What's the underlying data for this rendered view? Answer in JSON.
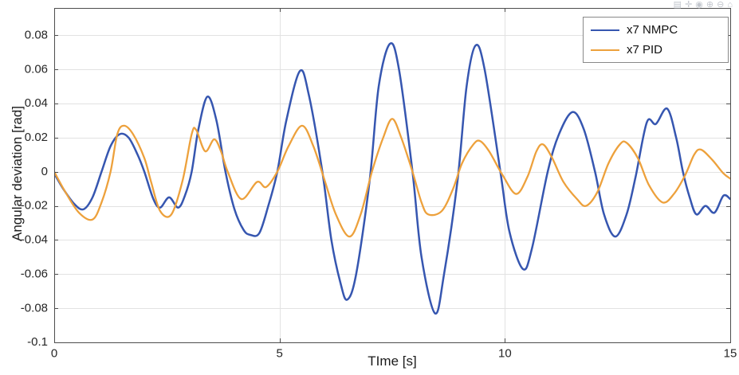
{
  "toolbar": {
    "icons": [
      {
        "name": "brush",
        "glyph": "▤"
      },
      {
        "name": "pan",
        "glyph": "✛"
      },
      {
        "name": "datatip",
        "glyph": "◉"
      },
      {
        "name": "zoom-in",
        "glyph": "⊕"
      },
      {
        "name": "zoom-out",
        "glyph": "⊖"
      },
      {
        "name": "home",
        "glyph": "⌂"
      }
    ]
  },
  "chart_data": {
    "type": "line",
    "title": "",
    "xlabel": "TIme [s]",
    "ylabel": "Angular deviation [rad]",
    "xlim": [
      0,
      15
    ],
    "ylim": [
      -0.1,
      0.096
    ],
    "xticks": [
      0,
      5,
      10,
      15
    ],
    "yticks": [
      -0.1,
      -0.08,
      -0.06,
      -0.04,
      -0.02,
      0,
      0.02,
      0.04,
      0.06,
      0.08
    ],
    "grid": true,
    "legend_position": "top-right",
    "axis_color": "#4d4d4d",
    "grid_color": "#e2e2e2",
    "tick_label_color": "#262626",
    "series": [
      {
        "name": "x7 NMPC",
        "color": "#3656b0",
        "width": 2.5,
        "points": [
          [
            0,
            -0.001
          ],
          [
            0.2,
            -0.01
          ],
          [
            0.45,
            -0.019
          ],
          [
            0.65,
            -0.022
          ],
          [
            0.85,
            -0.015
          ],
          [
            1.05,
            0.0
          ],
          [
            1.25,
            0.015
          ],
          [
            1.45,
            0.022
          ],
          [
            1.65,
            0.02
          ],
          [
            1.85,
            0.01
          ],
          [
            2.0,
            0.0
          ],
          [
            2.2,
            -0.016
          ],
          [
            2.35,
            -0.021
          ],
          [
            2.55,
            -0.015
          ],
          [
            2.75,
            -0.021
          ],
          [
            2.9,
            -0.014
          ],
          [
            3.05,
            0.0
          ],
          [
            3.2,
            0.025
          ],
          [
            3.4,
            0.044
          ],
          [
            3.6,
            0.03
          ],
          [
            3.8,
            0.0
          ],
          [
            4.0,
            -0.022
          ],
          [
            4.2,
            -0.034
          ],
          [
            4.35,
            -0.037
          ],
          [
            4.55,
            -0.036
          ],
          [
            4.75,
            -0.02
          ],
          [
            4.95,
            0.0
          ],
          [
            5.15,
            0.03
          ],
          [
            5.45,
            0.059
          ],
          [
            5.65,
            0.045
          ],
          [
            5.95,
            0.0
          ],
          [
            6.15,
            -0.04
          ],
          [
            6.35,
            -0.065
          ],
          [
            6.5,
            -0.075
          ],
          [
            6.7,
            -0.06
          ],
          [
            7.0,
            -0.005
          ],
          [
            7.2,
            0.05
          ],
          [
            7.45,
            0.075
          ],
          [
            7.65,
            0.06
          ],
          [
            7.95,
            0.0
          ],
          [
            8.15,
            -0.05
          ],
          [
            8.45,
            -0.083
          ],
          [
            8.65,
            -0.06
          ],
          [
            8.95,
            -0.005
          ],
          [
            9.15,
            0.05
          ],
          [
            9.35,
            0.074
          ],
          [
            9.55,
            0.06
          ],
          [
            9.9,
            0.0
          ],
          [
            10.1,
            -0.035
          ],
          [
            10.4,
            -0.057
          ],
          [
            10.6,
            -0.045
          ],
          [
            10.95,
            0.0
          ],
          [
            11.2,
            0.022
          ],
          [
            11.5,
            0.035
          ],
          [
            11.75,
            0.025
          ],
          [
            12.0,
            0.0
          ],
          [
            12.2,
            -0.025
          ],
          [
            12.45,
            -0.038
          ],
          [
            12.7,
            -0.025
          ],
          [
            12.9,
            -0.003
          ],
          [
            13.15,
            0.029
          ],
          [
            13.35,
            0.028
          ],
          [
            13.6,
            0.037
          ],
          [
            13.8,
            0.02
          ],
          [
            13.95,
            0.0
          ],
          [
            14.1,
            -0.015
          ],
          [
            14.25,
            -0.025
          ],
          [
            14.45,
            -0.02
          ],
          [
            14.65,
            -0.024
          ],
          [
            14.85,
            -0.014
          ],
          [
            15,
            -0.016
          ]
        ]
      },
      {
        "name": "x7 PID",
        "color": "#eda13c",
        "width": 2.3,
        "points": [
          [
            0,
            0.0
          ],
          [
            0.25,
            -0.012
          ],
          [
            0.55,
            -0.024
          ],
          [
            0.85,
            -0.028
          ],
          [
            1.05,
            -0.018
          ],
          [
            1.25,
            0.0
          ],
          [
            1.4,
            0.022
          ],
          [
            1.55,
            0.027
          ],
          [
            1.75,
            0.022
          ],
          [
            2.0,
            0.008
          ],
          [
            2.15,
            -0.006
          ],
          [
            2.35,
            -0.023
          ],
          [
            2.6,
            -0.025
          ],
          [
            2.85,
            -0.005
          ],
          [
            3.05,
            0.022
          ],
          [
            3.15,
            0.0245
          ],
          [
            3.35,
            0.012
          ],
          [
            3.55,
            0.019
          ],
          [
            3.7,
            0.012
          ],
          [
            3.85,
            0.0
          ],
          [
            4.15,
            -0.016
          ],
          [
            4.5,
            -0.006
          ],
          [
            4.7,
            -0.009
          ],
          [
            4.95,
            0.0
          ],
          [
            5.2,
            0.015
          ],
          [
            5.5,
            0.027
          ],
          [
            5.75,
            0.015
          ],
          [
            6.0,
            -0.005
          ],
          [
            6.25,
            -0.025
          ],
          [
            6.55,
            -0.038
          ],
          [
            6.8,
            -0.025
          ],
          [
            7.05,
            0.0
          ],
          [
            7.3,
            0.02
          ],
          [
            7.5,
            0.031
          ],
          [
            7.7,
            0.02
          ],
          [
            7.95,
            0.0
          ],
          [
            8.15,
            -0.018
          ],
          [
            8.3,
            -0.025
          ],
          [
            8.6,
            -0.023
          ],
          [
            8.85,
            -0.01
          ],
          [
            9.05,
            0.005
          ],
          [
            9.3,
            0.016
          ],
          [
            9.45,
            0.018
          ],
          [
            9.65,
            0.012
          ],
          [
            9.95,
            -0.002
          ],
          [
            10.25,
            -0.013
          ],
          [
            10.5,
            -0.003
          ],
          [
            10.7,
            0.012
          ],
          [
            10.85,
            0.016
          ],
          [
            11.05,
            0.008
          ],
          [
            11.3,
            -0.006
          ],
          [
            11.6,
            -0.016
          ],
          [
            11.8,
            -0.02
          ],
          [
            12.05,
            -0.012
          ],
          [
            12.3,
            0.005
          ],
          [
            12.55,
            0.016
          ],
          [
            12.7,
            0.017
          ],
          [
            12.95,
            0.008
          ],
          [
            13.2,
            -0.008
          ],
          [
            13.5,
            -0.018
          ],
          [
            13.75,
            -0.013
          ],
          [
            14.0,
            -0.002
          ],
          [
            14.2,
            0.01
          ],
          [
            14.35,
            0.013
          ],
          [
            14.6,
            0.007
          ],
          [
            14.85,
            -0.001
          ],
          [
            15,
            -0.004
          ]
        ]
      }
    ]
  }
}
